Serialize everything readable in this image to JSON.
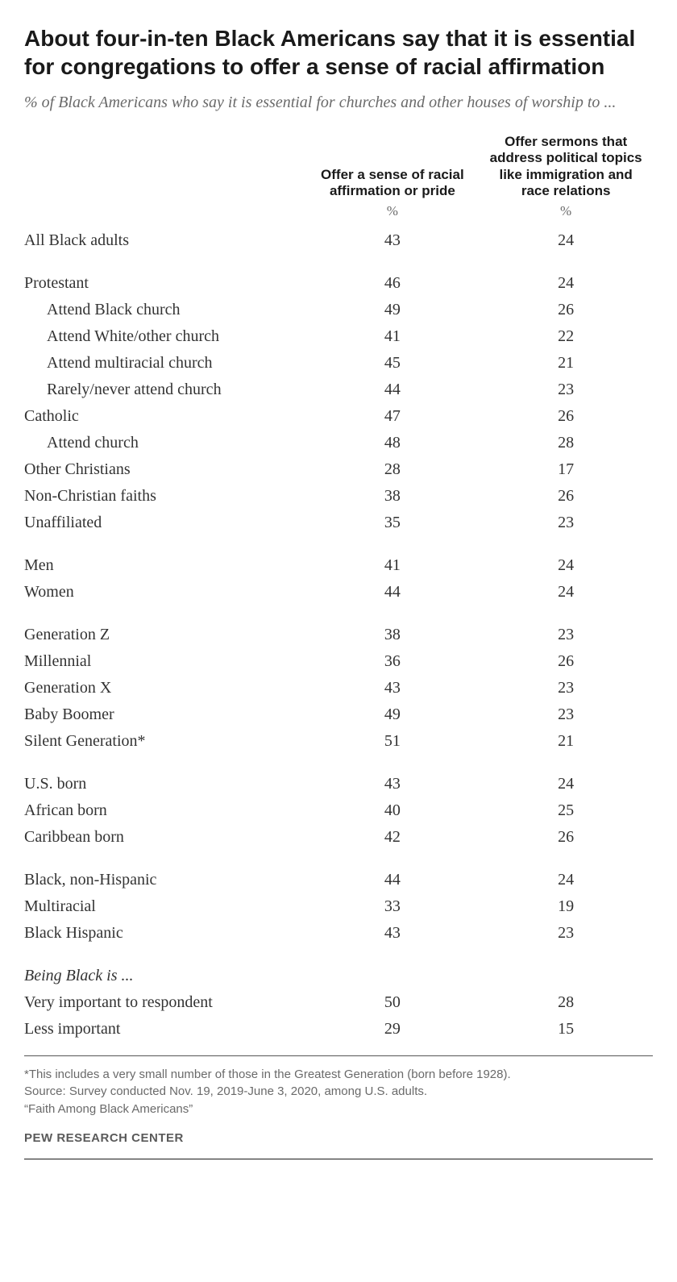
{
  "title": "About four-in-ten Black Americans say that it is essential for congregations to offer a sense of racial affirmation",
  "subtitle": "% of Black Americans who say it is essential for churches and other houses of worship to ...",
  "columns": {
    "col1": "Offer a sense\nof racial\naffirmation\nor pride",
    "col2": "Offer sermons that\naddress political topics\nlike immigration and\nrace relations",
    "unit": "%"
  },
  "groups": [
    {
      "rows": [
        {
          "label": "All Black adults",
          "v1": "43",
          "v2": "24"
        }
      ]
    },
    {
      "rows": [
        {
          "label": "Protestant",
          "v1": "46",
          "v2": "24"
        },
        {
          "label": "Attend Black church",
          "v1": "49",
          "v2": "26",
          "indent": true
        },
        {
          "label": "Attend White/other church",
          "v1": "41",
          "v2": "22",
          "indent": true
        },
        {
          "label": "Attend multiracial church",
          "v1": "45",
          "v2": "21",
          "indent": true
        },
        {
          "label": "Rarely/never attend church",
          "v1": "44",
          "v2": "23",
          "indent": true
        },
        {
          "label": "Catholic",
          "v1": "47",
          "v2": "26"
        },
        {
          "label": "Attend church",
          "v1": "48",
          "v2": "28",
          "indent": true
        },
        {
          "label": "Other Christians",
          "v1": "28",
          "v2": "17"
        },
        {
          "label": "Non-Christian faiths",
          "v1": "38",
          "v2": "26"
        },
        {
          "label": "Unaffiliated",
          "v1": "35",
          "v2": "23"
        }
      ]
    },
    {
      "rows": [
        {
          "label": "Men",
          "v1": "41",
          "v2": "24"
        },
        {
          "label": "Women",
          "v1": "44",
          "v2": "24"
        }
      ]
    },
    {
      "rows": [
        {
          "label": "Generation Z",
          "v1": "38",
          "v2": "23"
        },
        {
          "label": "Millennial",
          "v1": "36",
          "v2": "26"
        },
        {
          "label": "Generation X",
          "v1": "43",
          "v2": "23"
        },
        {
          "label": "Baby Boomer",
          "v1": "49",
          "v2": "23"
        },
        {
          "label": "Silent Generation*",
          "v1": "51",
          "v2": "21"
        }
      ]
    },
    {
      "rows": [
        {
          "label": "U.S. born",
          "v1": "43",
          "v2": "24"
        },
        {
          "label": "African born",
          "v1": "40",
          "v2": "25"
        },
        {
          "label": "Caribbean born",
          "v1": "42",
          "v2": "26"
        }
      ]
    },
    {
      "rows": [
        {
          "label": "Black, non-Hispanic",
          "v1": "44",
          "v2": "24"
        },
        {
          "label": "Multiracial",
          "v1": "33",
          "v2": "19"
        },
        {
          "label": "Black Hispanic",
          "v1": "43",
          "v2": "23"
        }
      ]
    },
    {
      "rows": [
        {
          "label": "Being Black is ...",
          "v1": "",
          "v2": "",
          "italic": true
        },
        {
          "label": "Very important to respondent",
          "v1": "50",
          "v2": "28"
        },
        {
          "label": "Less important",
          "v1": "29",
          "v2": "15"
        }
      ]
    }
  ],
  "footnotes": [
    "*This includes a very small number of those in the Greatest Generation (born before 1928).",
    "Source: Survey conducted Nov. 19, 2019-June 3, 2020, among U.S. adults.",
    "“Faith Among Black Americans”"
  ],
  "attribution": "PEW RESEARCH CENTER",
  "style": {
    "text_color": "#333333",
    "subtitle_color": "#6a6a6a",
    "background": "#ffffff",
    "title_fontsize": 28,
    "body_fontsize": 20,
    "note_fontsize": 15
  }
}
